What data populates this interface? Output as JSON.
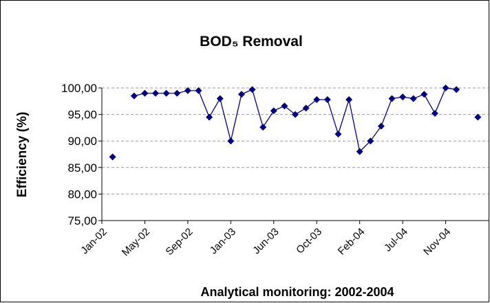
{
  "chart_data": {
    "type": "line",
    "title": "BOD₅ Removal",
    "x_label": "Analytical monitoring: 2002-2004",
    "y_label": "Efficiency (%)",
    "categories": [
      "Jan-02",
      null,
      null,
      null,
      "May-02",
      null,
      null,
      null,
      "Sep-02",
      null,
      null,
      null,
      "Jan-03",
      null,
      null,
      null,
      "Jun-03",
      null,
      null,
      null,
      "Oct-03",
      null,
      null,
      null,
      "Feb-04",
      null,
      null,
      null,
      "Jul-04",
      null,
      null,
      null,
      "Nov-04",
      null,
      null,
      null
    ],
    "series": [
      {
        "name": "BOD5 Removal",
        "color": "#000080",
        "values": [
          null,
          87,
          null,
          98.5,
          99,
          99,
          99,
          99,
          99.5,
          99.5,
          94.5,
          98,
          90,
          98.8,
          99.7,
          92.6,
          95.7,
          96.6,
          95,
          96.2,
          97.8,
          97.8,
          91.3,
          97.8,
          88,
          90,
          92.8,
          98,
          98.3,
          98,
          98.8,
          95.2,
          100,
          99.7,
          null,
          94.5
        ]
      }
    ],
    "ylim": [
      75,
      100
    ],
    "yticks": [
      {
        "value": 75,
        "label": "75,00"
      },
      {
        "value": 80,
        "label": "80,00"
      },
      {
        "value": 85,
        "label": "85,00"
      },
      {
        "value": 90,
        "label": "90,00"
      },
      {
        "value": 95,
        "label": "95,00"
      },
      {
        "value": 100,
        "label": "100,00"
      }
    ],
    "grid": true
  }
}
